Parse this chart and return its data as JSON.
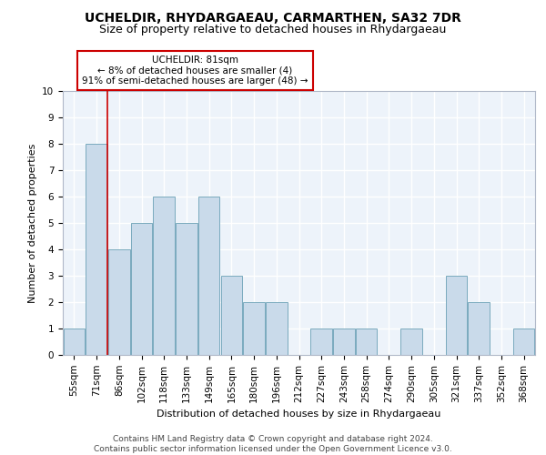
{
  "title": "UCHELDIR, RHYDARGAEAU, CARMARTHEN, SA32 7DR",
  "subtitle": "Size of property relative to detached houses in Rhydargaeau",
  "xlabel": "Distribution of detached houses by size in Rhydargaeau",
  "ylabel": "Number of detached properties",
  "categories": [
    "55sqm",
    "71sqm",
    "86sqm",
    "102sqm",
    "118sqm",
    "133sqm",
    "149sqm",
    "165sqm",
    "180sqm",
    "196sqm",
    "212sqm",
    "227sqm",
    "243sqm",
    "258sqm",
    "274sqm",
    "290sqm",
    "305sqm",
    "321sqm",
    "337sqm",
    "352sqm",
    "368sqm"
  ],
  "values": [
    1,
    8,
    4,
    5,
    6,
    5,
    6,
    3,
    2,
    2,
    0,
    1,
    1,
    1,
    0,
    1,
    0,
    3,
    2,
    0,
    1
  ],
  "bar_color": "#c9daea",
  "bar_edge_color": "#7aaabe",
  "vline_x_index": 1,
  "vline_color": "#cc0000",
  "ylim": [
    0,
    10
  ],
  "yticks": [
    0,
    1,
    2,
    3,
    4,
    5,
    6,
    7,
    8,
    9,
    10
  ],
  "annotation_text": "UCHELDIR: 81sqm\n← 8% of detached houses are smaller (4)\n91% of semi-detached houses are larger (48) →",
  "annotation_box_facecolor": "#ffffff",
  "annotation_box_edgecolor": "#cc0000",
  "footer_line1": "Contains HM Land Registry data © Crown copyright and database right 2024.",
  "footer_line2": "Contains public sector information licensed under the Open Government Licence v3.0.",
  "bg_color": "#edf3fa",
  "grid_color": "#ffffff",
  "title_fontsize": 10,
  "subtitle_fontsize": 9,
  "axis_label_fontsize": 8,
  "tick_fontsize": 7.5,
  "annotation_fontsize": 7.5,
  "footer_fontsize": 6.5
}
